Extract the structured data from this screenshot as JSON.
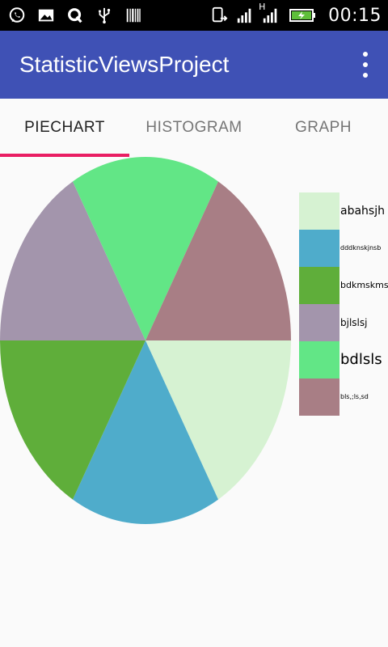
{
  "status_bar": {
    "time": "00:15",
    "network_label": "H",
    "icons": [
      "whatsapp-icon",
      "gallery-icon",
      "q-icon",
      "usb-icon",
      "barcode-icon",
      "phone-sync-icon",
      "signal-icon",
      "signal-icon",
      "battery-charging-icon"
    ]
  },
  "app_bar": {
    "title": "StatisticViewsProject",
    "menu_icon": "overflow-menu-icon"
  },
  "tabs": [
    {
      "label": "PIECHART",
      "active": true
    },
    {
      "label": "HISTOGRAM",
      "active": false
    },
    {
      "label": "GRAPH",
      "active": false
    }
  ],
  "chart_data": {
    "type": "pie",
    "values": [
      1,
      1,
      1,
      1,
      1,
      1
    ],
    "colors": [
      "#d6f2d2",
      "#4faccb",
      "#5fae3a",
      "#a395ac",
      "#62e686",
      "#a87e85"
    ],
    "legend": [
      {
        "label": "abahsjh",
        "color": "#d6f2d2"
      },
      {
        "label": "dddknskjnsb",
        "color": "#4faccb"
      },
      {
        "label": "bdkmskms",
        "color": "#5fae3a"
      },
      {
        "label": "bjlslsj",
        "color": "#a395ac"
      },
      {
        "label": "bdlsls",
        "color": "#62e686"
      },
      {
        "label": "bls,;ls,sd",
        "color": "#a87e85"
      }
    ]
  }
}
